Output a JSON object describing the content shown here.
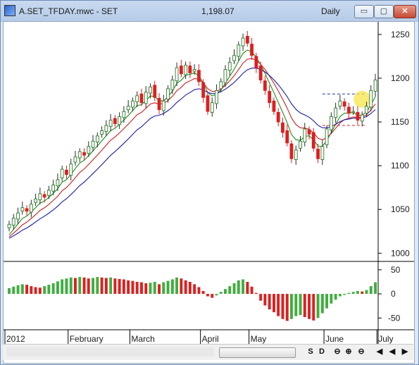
{
  "window": {
    "title": "A.SET_TFDAY.mwc - SET",
    "price": "1,198.07",
    "period": "Daily",
    "buttons": {
      "minimize": "▭",
      "maximize": "▢",
      "close": "✕"
    }
  },
  "toolbar": {
    "buttons": [
      "S",
      "D",
      "⊖",
      "⊕",
      "⊖",
      "◀",
      "◀",
      "▶"
    ]
  },
  "colors": {
    "up": "#3fae3f",
    "down": "#dd1f1f",
    "ema_fast": "#1a8c1a",
    "ema_mid": "#cc1f1f",
    "ema_slow": "#1a1aa8",
    "annotation": "#f5e64a",
    "hline": "#cc1f1f",
    "hline_blue": "#2233aa"
  },
  "chart_data": [
    {
      "type": "candlestick",
      "title": "",
      "ylim": [
        993,
        1262
      ],
      "yticks": [
        "1250",
        "1200",
        "1150",
        "1100",
        "1050",
        "1000"
      ],
      "ytick_values": [
        1250,
        1200,
        1150,
        1100,
        1050,
        1000
      ],
      "xlabels": [
        "2012",
        "February",
        "March",
        "April",
        "May",
        "June",
        "July"
      ],
      "xlabel_bar_index": [
        0,
        14,
        28,
        44,
        55,
        72,
        84
      ],
      "series": [
        {
          "name": "Price",
          "style": "candles"
        },
        {
          "name": "",
          "style": "line",
          "role": "ema_fast"
        },
        {
          "name": "",
          "style": "line",
          "role": "ema_mid"
        },
        {
          "name": "",
          "style": "line",
          "role": "ema_slow"
        }
      ],
      "reference_levels": [
        {
          "value": 1182,
          "color": "blue",
          "from_bar": 71,
          "to_bar": 81
        },
        {
          "value": 1146,
          "color": "red",
          "from_bar": 71,
          "to_bar": 81
        }
      ],
      "closes": [
        1033,
        1040,
        1046,
        1052,
        1048,
        1056,
        1062,
        1068,
        1064,
        1072,
        1078,
        1084,
        1096,
        1090,
        1102,
        1110,
        1116,
        1112,
        1122,
        1128,
        1134,
        1140,
        1146,
        1152,
        1148,
        1156,
        1162,
        1168,
        1174,
        1180,
        1172,
        1184,
        1190,
        1178,
        1164,
        1174,
        1188,
        1198,
        1212,
        1205,
        1215,
        1206,
        1210,
        1196,
        1178,
        1162,
        1172,
        1186,
        1196,
        1210,
        1218,
        1226,
        1238,
        1246,
        1240,
        1226,
        1212,
        1198,
        1186,
        1172,
        1162,
        1150,
        1138,
        1126,
        1108,
        1118,
        1128,
        1142,
        1136,
        1120,
        1108,
        1122,
        1142,
        1156,
        1166,
        1174,
        1168,
        1160,
        1162,
        1152,
        1158,
        1168,
        1186,
        1198
      ],
      "oscillator": {
        "ylim": [
          -70,
          60
        ],
        "yticks": [
          "50",
          "0",
          "-50"
        ],
        "ytick_values": [
          50,
          0,
          -50
        ],
        "values": [
          12,
          15,
          18,
          20,
          19,
          16,
          14,
          13,
          16,
          19,
          22,
          26,
          30,
          32,
          34,
          33,
          35,
          34,
          32,
          33,
          35,
          34,
          33,
          34,
          32,
          31,
          30,
          28,
          27,
          25,
          24,
          22,
          23,
          25,
          20,
          24,
          27,
          30,
          34,
          32,
          28,
          25,
          20,
          14,
          6,
          -5,
          -8,
          -3,
          4,
          10,
          16,
          22,
          28,
          30,
          25,
          15,
          2,
          -14,
          -24,
          -32,
          -38,
          -46,
          -52,
          -56,
          -52,
          -46,
          -44,
          -48,
          -52,
          -55,
          -50,
          -40,
          -30,
          -20,
          -12,
          -5,
          -2,
          2,
          4,
          6,
          5,
          8,
          16,
          24
        ]
      }
    }
  ]
}
